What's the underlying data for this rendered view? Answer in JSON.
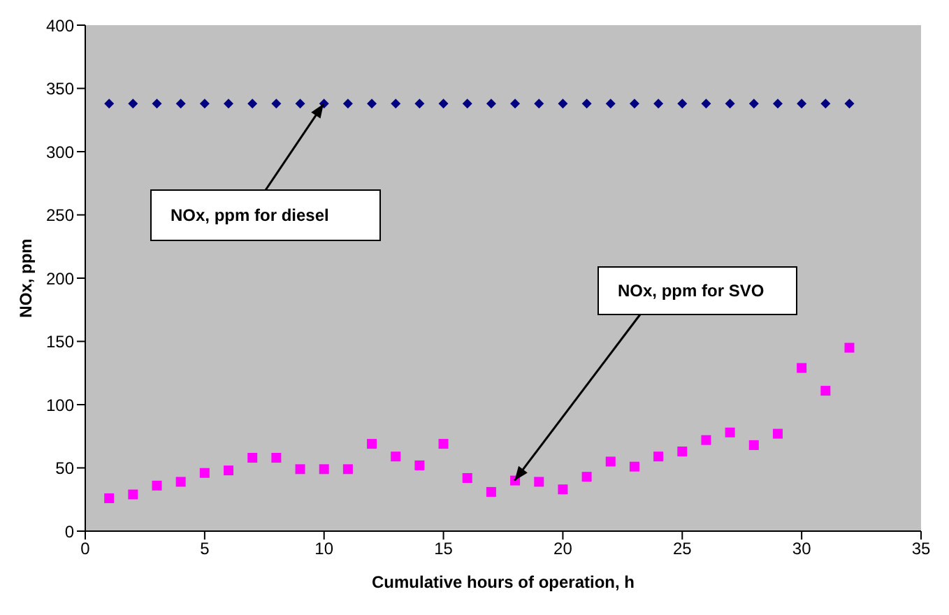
{
  "chart_data": {
    "type": "scatter",
    "xlabel": "Cumulative hours of operation, h",
    "ylabel": "NOx, ppm",
    "x": [
      1,
      2,
      3,
      4,
      5,
      6,
      7,
      8,
      9,
      10,
      11,
      12,
      13,
      14,
      15,
      16,
      17,
      18,
      19,
      20,
      21,
      22,
      23,
      24,
      25,
      26,
      27,
      28,
      29,
      30,
      31,
      32
    ],
    "series": [
      {
        "color": "#000080",
        "marker": "diamond",
        "values": [
          338,
          338,
          338,
          338,
          338,
          338,
          338,
          338,
          338,
          338,
          338,
          338,
          338,
          338,
          338,
          338,
          338,
          338,
          338,
          338,
          338,
          338,
          338,
          338,
          338,
          338,
          338,
          338,
          338,
          338,
          338,
          338
        ]
      },
      {
        "color": "#ff00ff",
        "marker": "square",
        "values": [
          26,
          29,
          36,
          39,
          46,
          48,
          58,
          58,
          49,
          49,
          49,
          69,
          59,
          52,
          69,
          42,
          31,
          40,
          39,
          33,
          43,
          55,
          51,
          59,
          63,
          72,
          78,
          68,
          77,
          129,
          111,
          145
        ]
      }
    ],
    "xlim": [
      0,
      35
    ],
    "xticks": [
      0,
      5,
      10,
      15,
      20,
      25,
      30,
      35
    ],
    "ylim": [
      0,
      400
    ],
    "yticks": [
      0,
      50,
      100,
      150,
      200,
      250,
      300,
      350,
      400
    ],
    "grid": false,
    "legend": false,
    "annotations": [
      {
        "text": "NOx, ppm for diesel",
        "x": 10,
        "y": 338
      },
      {
        "text": "NOx, ppm for SVO",
        "x": 18,
        "y": 40
      }
    ]
  }
}
